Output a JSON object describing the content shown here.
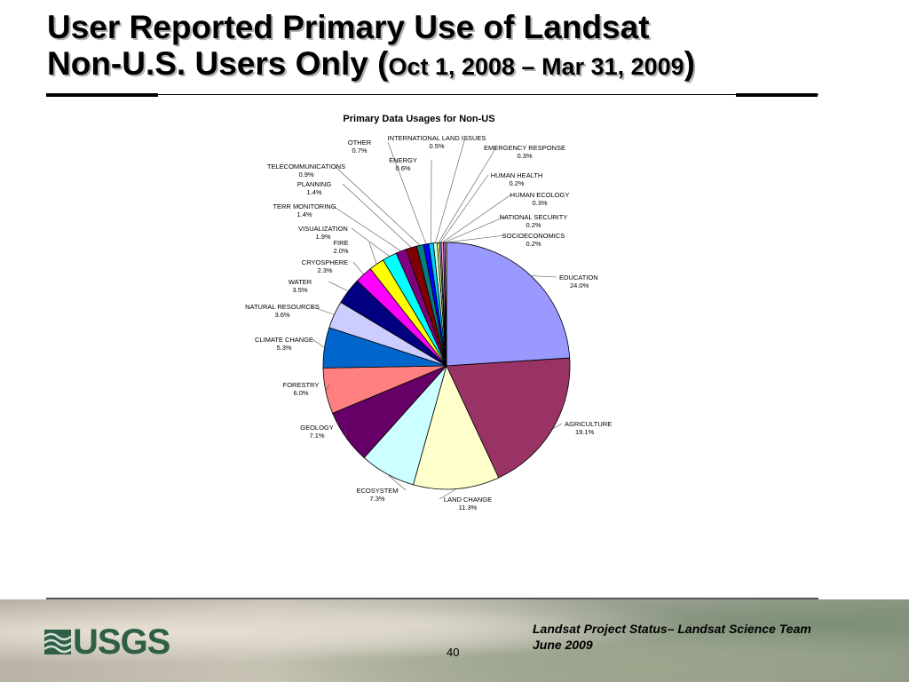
{
  "slide": {
    "title_line1": "User Reported Primary Use of Landsat",
    "title_line2_main": "Non-U.S. Users Only (",
    "title_line2_dates": "Oct 1, 2008 – Mar 31, 2009",
    "title_line2_close": ")"
  },
  "footer": {
    "logo_text": "USGS",
    "page_number": "40",
    "note_line1": "Landsat Project Status– Landsat Science Team",
    "note_line2": "June 2009"
  },
  "chart_data": {
    "type": "pie",
    "title": "Primary Data Usages for Non-US",
    "slices": [
      {
        "label": "EDUCATION",
        "value": 24.0,
        "value_label": "24.0%",
        "color": "#9999ff"
      },
      {
        "label": "AGRICULTURE",
        "value": 19.1,
        "value_label": "19.1%",
        "color": "#993366"
      },
      {
        "label": "LAND CHANGE",
        "value": 11.3,
        "value_label": "11.3%",
        "color": "#ffffcc"
      },
      {
        "label": "ECOSYSTEM",
        "value": 7.3,
        "value_label": "7.3%",
        "color": "#ccffff"
      },
      {
        "label": "GEOLOGY",
        "value": 7.1,
        "value_label": "7.1%",
        "color": "#660066"
      },
      {
        "label": "FORESTRY",
        "value": 6.0,
        "value_label": "6.0%",
        "color": "#ff8080"
      },
      {
        "label": "CLIMATE CHANGE",
        "value": 5.3,
        "value_label": "5.3%",
        "color": "#0066cc"
      },
      {
        "label": "NATURAL RESOURCES",
        "value": 3.6,
        "value_label": "3.6%",
        "color": "#ccccff"
      },
      {
        "label": "WATER",
        "value": 3.5,
        "value_label": "3.5%",
        "color": "#000080"
      },
      {
        "label": "CRYOSPHERE",
        "value": 2.3,
        "value_label": "2.3%",
        "color": "#ff00ff"
      },
      {
        "label": "FIRE",
        "value": 2.0,
        "value_label": "2.0%",
        "color": "#ffff00"
      },
      {
        "label": "VISUALIZATION",
        "value": 1.9,
        "value_label": "1.9%",
        "color": "#00ffff"
      },
      {
        "label": "TERR MONITORING",
        "value": 1.4,
        "value_label": "1.4%",
        "color": "#800080"
      },
      {
        "label": "PLANNING",
        "value": 1.4,
        "value_label": "1.4%",
        "color": "#800000"
      },
      {
        "label": "TELECOMMUNICATIONS",
        "value": 0.9,
        "value_label": "0.9%",
        "color": "#008080"
      },
      {
        "label": "OTHER",
        "value": 0.7,
        "value_label": "0.7%",
        "color": "#0000ff"
      },
      {
        "label": "ENERGY",
        "value": 0.6,
        "value_label": "0.6%",
        "color": "#00ccff"
      },
      {
        "label": "INTERNATIONAL LAND ISSUES",
        "value": 0.5,
        "value_label": "0.5%",
        "color": "#ccffcc"
      },
      {
        "label": "EMERGENCY RESPONSE",
        "value": 0.3,
        "value_label": "0.3%",
        "color": "#ffff99"
      },
      {
        "label": "HUMAN HEALTH",
        "value": 0.2,
        "value_label": "0.2%",
        "color": "#99ccff"
      },
      {
        "label": "HUMAN ECOLOGY",
        "value": 0.3,
        "value_label": "0.3%",
        "color": "#ff99cc"
      },
      {
        "label": "NATIONAL SECURITY",
        "value": 0.2,
        "value_label": "0.2%",
        "color": "#cc99ff"
      },
      {
        "label": "SOCIOECONOMICS",
        "value": 0.2,
        "value_label": "0.2%",
        "color": "#ffcc99"
      }
    ]
  }
}
